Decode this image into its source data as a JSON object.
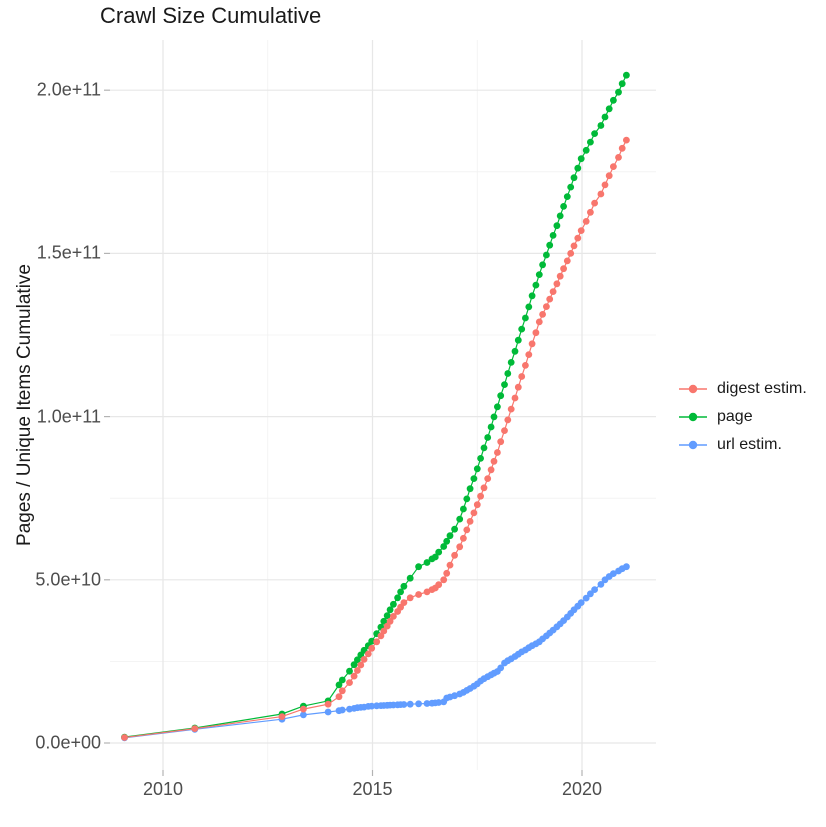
{
  "chart_data": {
    "type": "line",
    "title": "Crawl Size Cumulative",
    "xlabel": "",
    "ylabel": "Pages / Unique Items Cumulative",
    "y_unit_multiplier": 1000000000.0,
    "xlim": [
      2008.72,
      2021.77
    ],
    "ylim_billions": [
      -8.3,
      215.4
    ],
    "grid": "on",
    "legend_position": "right",
    "marker_style": "point-with-line",
    "x": [
      2009.08,
      2010.76,
      2012.84,
      2013.35,
      2013.94,
      2014.2,
      2014.28,
      2014.45,
      2014.56,
      2014.64,
      2014.72,
      2014.8,
      2014.9,
      2014.98,
      2015.1,
      2015.2,
      2015.27,
      2015.35,
      2015.42,
      2015.5,
      2015.6,
      2015.67,
      2015.75,
      2015.9,
      2016.1,
      2016.3,
      2016.42,
      2016.5,
      2016.58,
      2016.7,
      2016.77,
      2016.85,
      2016.96,
      2017.08,
      2017.17,
      2017.25,
      2017.33,
      2017.42,
      2017.5,
      2017.58,
      2017.66,
      2017.75,
      2017.83,
      2017.9,
      2017.98,
      2018.06,
      2018.15,
      2018.23,
      2018.31,
      2018.4,
      2018.48,
      2018.56,
      2018.65,
      2018.73,
      2018.81,
      2018.9,
      2018.98,
      2019.06,
      2019.15,
      2019.23,
      2019.31,
      2019.4,
      2019.48,
      2019.56,
      2019.65,
      2019.73,
      2019.81,
      2019.9,
      2019.98,
      2020.1,
      2020.2,
      2020.3,
      2020.45,
      2020.55,
      2020.65,
      2020.75,
      2020.87,
      2020.96,
      2021.06
    ],
    "series": [
      {
        "name": "url estim.",
        "color": "#619CFF",
        "values_billions": [
          1.6,
          4.2,
          7.3,
          8.6,
          9.5,
          9.9,
          10.1,
          10.4,
          10.6,
          10.8,
          10.9,
          11.0,
          11.2,
          11.3,
          11.4,
          11.45,
          11.5,
          11.55,
          11.6,
          11.65,
          11.7,
          11.75,
          11.8,
          11.9,
          12.0,
          12.1,
          12.2,
          12.3,
          12.4,
          12.6,
          13.8,
          14.1,
          14.5,
          15.0,
          15.5,
          16.1,
          16.7,
          17.4,
          18.1,
          19.0,
          19.7,
          20.3,
          20.9,
          21.4,
          21.9,
          23.0,
          24.5,
          25.2,
          25.8,
          26.5,
          27.2,
          27.9,
          28.5,
          29.2,
          29.8,
          30.4,
          31.0,
          31.9,
          32.8,
          33.7,
          34.6,
          35.6,
          36.5,
          37.5,
          38.6,
          39.7,
          40.8,
          41.9,
          43.0,
          44.4,
          45.7,
          47.0,
          48.6,
          50.0,
          51.0,
          51.9,
          52.7,
          53.4,
          54.0
        ]
      },
      {
        "name": "page",
        "color": "#00BA38",
        "values_billions": [
          1.8,
          4.6,
          8.9,
          11.3,
          12.9,
          17.8,
          19.3,
          22.0,
          24.0,
          25.5,
          27.0,
          28.4,
          29.8,
          31.2,
          33.5,
          35.5,
          37.3,
          39.0,
          40.8,
          42.5,
          44.5,
          46.3,
          48.0,
          50.5,
          54.0,
          55.3,
          56.4,
          57.0,
          58.5,
          60.2,
          61.8,
          63.5,
          65.5,
          68.6,
          71.7,
          74.8,
          77.9,
          81.0,
          84.0,
          87.2,
          90.4,
          93.6,
          96.8,
          99.9,
          103.0,
          106.4,
          109.8,
          113.2,
          116.6,
          120.0,
          123.4,
          126.8,
          130.2,
          133.6,
          137.0,
          140.3,
          143.5,
          146.5,
          149.5,
          152.5,
          155.5,
          158.5,
          161.5,
          164.4,
          167.4,
          170.3,
          173.2,
          176.1,
          179.0,
          181.6,
          184.1,
          186.7,
          189.2,
          191.8,
          194.3,
          196.9,
          199.4,
          202.0,
          204.6
        ]
      },
      {
        "name": "digest estim.",
        "color": "#F8766D",
        "values_billions": [
          1.7,
          4.4,
          8.1,
          10.4,
          11.9,
          14.2,
          16.0,
          18.5,
          20.5,
          22.2,
          23.9,
          25.6,
          27.3,
          29.0,
          31.0,
          32.8,
          34.3,
          35.8,
          37.3,
          38.8,
          40.3,
          41.6,
          43.0,
          44.5,
          45.5,
          46.3,
          47.0,
          47.5,
          48.5,
          50.0,
          52.0,
          54.5,
          57.5,
          60.1,
          62.7,
          65.3,
          67.9,
          70.5,
          73.0,
          75.6,
          78.2,
          81.0,
          83.7,
          86.3,
          89.0,
          92.3,
          95.7,
          99.0,
          102.3,
          105.7,
          109.0,
          112.3,
          115.7,
          119.0,
          122.3,
          125.7,
          129.0,
          131.3,
          133.7,
          136.0,
          138.3,
          140.7,
          143.0,
          145.3,
          147.7,
          150.0,
          152.3,
          154.7,
          157.0,
          159.8,
          162.6,
          165.4,
          168.2,
          171.0,
          173.8,
          176.6,
          179.4,
          182.2,
          184.7
        ]
      }
    ]
  },
  "axes": {
    "x": {
      "ticks": [
        {
          "label": "2010",
          "year": 2010
        },
        {
          "label": "2015",
          "year": 2015
        },
        {
          "label": "2020",
          "year": 2020
        }
      ],
      "minor_years": [
        2012.5,
        2017.5
      ]
    },
    "y": {
      "ticks": [
        {
          "label": "0.0e+00",
          "value_billions": 0
        },
        {
          "label": "5.0e+10",
          "value_billions": 50
        },
        {
          "label": "1.0e+11",
          "value_billions": 100
        },
        {
          "label": "1.5e+11",
          "value_billions": 150
        },
        {
          "label": "2.0e+11",
          "value_billions": 200
        }
      ],
      "minor_values_billions": [
        25,
        75,
        125,
        175
      ]
    }
  },
  "legend": {
    "items": [
      {
        "label": "digest estim.",
        "color": "#F8766D"
      },
      {
        "label": "page",
        "color": "#00BA38"
      },
      {
        "label": "url estim.",
        "color": "#619CFF"
      }
    ]
  },
  "colors": {
    "background": "#ffffff",
    "grid_major": "#e7e7e7",
    "grid_minor": "#f1f1f1",
    "tick_mark": "#b3b3b3",
    "axis_text": "#4d4d4d",
    "title_text": "#1a1a1a"
  }
}
